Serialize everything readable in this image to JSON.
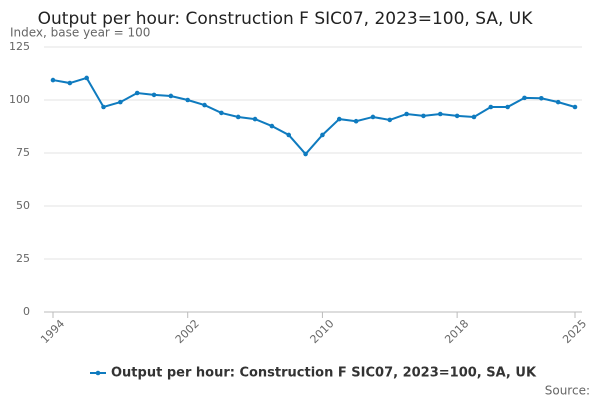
{
  "chart_data": {
    "type": "line",
    "title": "Output per hour: Construction F SIC07, 2023=100, SA, UK",
    "subtitle": "Index, base year = 100",
    "source": "Source:",
    "x": [
      1994,
      1995,
      1996,
      1997,
      1998,
      1999,
      2000,
      2001,
      2002,
      2003,
      2004,
      2005,
      2006,
      2007,
      2008,
      2009,
      2010,
      2011,
      2012,
      2013,
      2014,
      2015,
      2016,
      2017,
      2018,
      2019,
      2020,
      2021,
      2022,
      2023,
      2024,
      2025
    ],
    "series": [
      {
        "name": "Output per hour: Construction F SIC07, 2023=100, SA, UK",
        "color": "#0f7bbf",
        "values": [
          109.4,
          108,
          110.4,
          96.7,
          99,
          103.3,
          102.4,
          101.9,
          100,
          97.6,
          93.9,
          92,
          91,
          87.7,
          83.5,
          74.5,
          83.5,
          91,
          90,
          92,
          90.6,
          93.4,
          92.5,
          93.4,
          92.5,
          92,
          96.7,
          96.7,
          101,
          100.8,
          99,
          96.7
        ]
      }
    ],
    "xlim": [
      1994,
      2025
    ],
    "xticks": [
      1994,
      2002,
      2010,
      2018,
      2025
    ],
    "ylim": [
      0,
      125
    ],
    "yticks": [
      0,
      25,
      50,
      75,
      100,
      125
    ],
    "grid": true,
    "legend": "bottom"
  }
}
